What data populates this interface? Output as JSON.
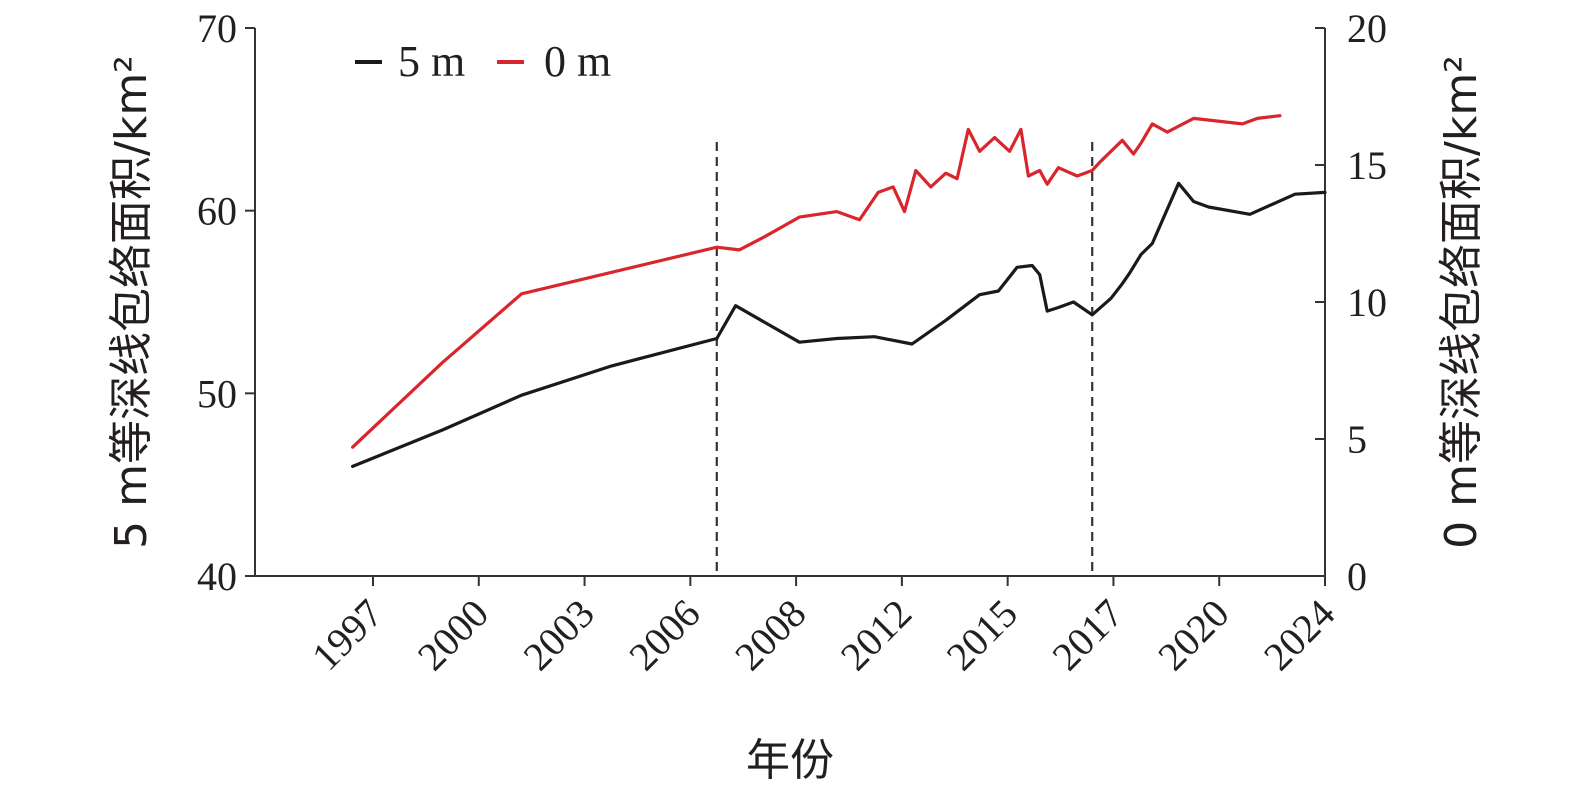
{
  "chart_data": {
    "type": "line",
    "xlabel": "年份",
    "ylabel_left": "5 m等深线包络面积/km²",
    "ylabel_right": "0 m等深线包络面积/km²",
    "x_ticks": [
      "1997",
      "2000",
      "2003",
      "2006",
      "2008",
      "2012",
      "2015",
      "2017",
      "2020",
      "2024"
    ],
    "ylim_left": [
      40,
      70
    ],
    "yticks_left": [
      40,
      50,
      60,
      70
    ],
    "ylim_right": [
      0,
      20
    ],
    "yticks_right": [
      0,
      5,
      10,
      15,
      20
    ],
    "dashed_vertical_lines_x": [
      2008.3,
      2018.3
    ],
    "legend_position": "top-left",
    "grid": false,
    "series": [
      {
        "name": "5 m",
        "axis": "left",
        "color": "#1a1a1a",
        "x": [
          1998.6,
          2001.0,
          2003.1,
          2005.5,
          2008.3,
          2008.8,
          2010.5,
          2011.5,
          2012.5,
          2013.5,
          2014.4,
          2015.3,
          2015.8,
          2016.3,
          2016.7,
          2016.9,
          2017.1,
          2017.4,
          2017.8,
          2018.3,
          2018.8,
          2019.1,
          2019.3,
          2019.6,
          2019.9,
          2020.6,
          2021.0,
          2021.4,
          2022.5,
          2023.7,
          2024.5
        ],
        "y": [
          46.0,
          48.0,
          49.9,
          51.5,
          53.0,
          54.8,
          52.8,
          53.0,
          53.1,
          52.7,
          54.0,
          55.4,
          55.6,
          56.9,
          57.0,
          56.5,
          54.5,
          54.7,
          55.0,
          54.3,
          55.2,
          56.0,
          56.6,
          57.6,
          58.2,
          61.5,
          60.5,
          60.2,
          59.8,
          60.9,
          61.0
        ]
      },
      {
        "name": "0 m",
        "axis": "right",
        "color": "#d9252c",
        "x": [
          1998.6,
          2001.0,
          2003.1,
          2008.3,
          2008.9,
          2009.6,
          2010.5,
          2011.5,
          2012.1,
          2012.6,
          2013.0,
          2013.3,
          2013.6,
          2014.0,
          2014.4,
          2014.7,
          2015.0,
          2015.3,
          2015.7,
          2016.1,
          2016.4,
          2016.6,
          2016.9,
          2017.1,
          2017.4,
          2017.9,
          2018.3,
          2018.5,
          2018.8,
          2019.1,
          2019.4,
          2019.6,
          2019.9,
          2020.3,
          2021.0,
          2022.3,
          2022.7,
          2023.3
        ],
        "y": [
          4.7,
          7.8,
          10.3,
          12.0,
          11.9,
          12.4,
          13.1,
          13.3,
          13.0,
          14.0,
          14.2,
          13.3,
          14.8,
          14.2,
          14.7,
          14.5,
          16.3,
          15.5,
          16.0,
          15.5,
          16.3,
          14.6,
          14.8,
          14.3,
          14.9,
          14.6,
          14.8,
          15.1,
          15.5,
          15.9,
          15.4,
          15.8,
          16.5,
          16.2,
          16.7,
          16.5,
          16.7,
          16.8
        ]
      }
    ]
  }
}
